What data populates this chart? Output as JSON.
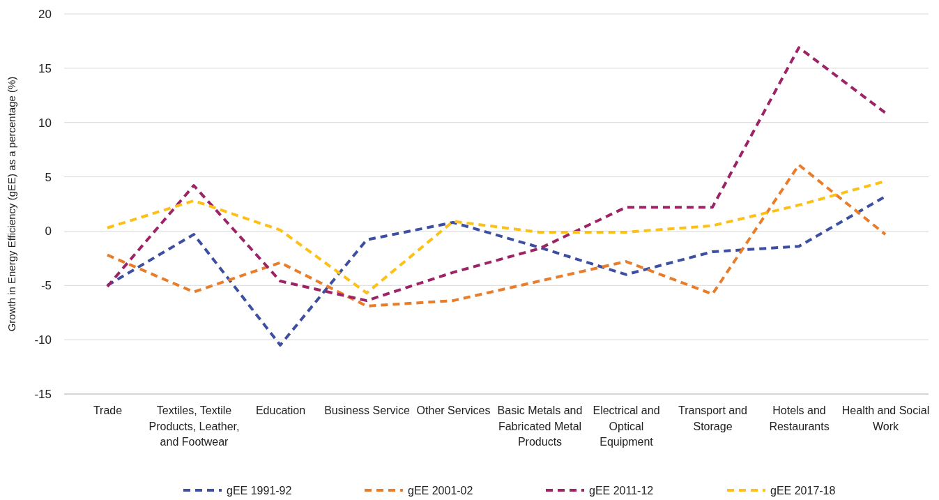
{
  "chart_data": {
    "type": "line",
    "ylabel": "Growth in Energy Efficiency (gEE) as a percentage (%)",
    "categories": [
      "Trade",
      "Textiles, Textile Products, Leather, and Footwear",
      "Education",
      "Business Service",
      "Other Services",
      "Basic Metals and Fabricated Metal Products",
      "Electrical and Optical Equipment",
      "Transport and Storage",
      "Hotels and Restaurants",
      "Health and Social Work"
    ],
    "series": [
      {
        "name": "gEE 1991-92",
        "color": "#3c4fa0",
        "values": [
          -5.0,
          -0.3,
          -10.5,
          -0.8,
          0.8,
          -1.5,
          -4.0,
          -1.9,
          -1.4,
          3.2
        ]
      },
      {
        "name": "gEE 2001-02",
        "color": "#e87d2b",
        "values": [
          -2.2,
          -5.6,
          -2.9,
          -6.9,
          -6.4,
          -4.6,
          -2.8,
          -5.8,
          6.1,
          -0.3
        ]
      },
      {
        "name": "gEE 2011-12",
        "color": "#9b2366",
        "values": [
          -5.1,
          4.2,
          -4.6,
          -6.4,
          -3.8,
          -1.6,
          2.2,
          2.2,
          16.9,
          10.9
        ]
      },
      {
        "name": "gEE 2017-18",
        "color": "#fcc016",
        "values": [
          0.3,
          2.8,
          0.1,
          -5.7,
          0.9,
          -0.1,
          -0.1,
          0.5,
          2.4,
          4.6
        ]
      }
    ],
    "ylim": [
      -15,
      20
    ],
    "yticks": [
      -15,
      -10,
      -5,
      0,
      5,
      10,
      15,
      20
    ],
    "grid": "y",
    "legend": "bottom",
    "line_style": "dashed",
    "marker": "none"
  }
}
